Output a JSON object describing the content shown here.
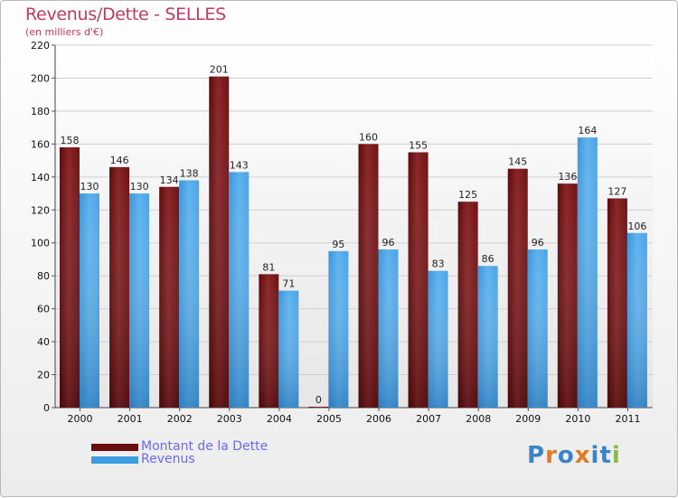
{
  "title": "Revenus/Dette - SELLES",
  "subtitle": "(en milliers d'€)",
  "legend": [
    {
      "label": "Montant de la Dette",
      "color": "#6b0e10"
    },
    {
      "label": "Revenus",
      "color": "#3d9be0"
    }
  ],
  "logo": {
    "letters": [
      "P",
      "r",
      "o",
      "x",
      "i",
      "t",
      "i"
    ],
    "colors": [
      "#3b83c6",
      "#e07b1f",
      "#3b83c6",
      "#e07b1f",
      "#3b83c6",
      "#3b83c6",
      "#8cba3c"
    ]
  },
  "chart_data": {
    "type": "bar",
    "categories": [
      "2000",
      "2001",
      "2002",
      "2003",
      "2004",
      "2005",
      "2006",
      "2007",
      "2008",
      "2009",
      "2010",
      "2011"
    ],
    "series": [
      {
        "name": "Montant de la Dette",
        "color": "#7a1719",
        "values": [
          158,
          146,
          134,
          201,
          81,
          0,
          160,
          155,
          125,
          145,
          136,
          127
        ]
      },
      {
        "name": "Revenus",
        "color": "#4aa3e6",
        "values": [
          130,
          130,
          138,
          143,
          71,
          95,
          96,
          83,
          86,
          96,
          164,
          106
        ]
      }
    ],
    "yticks": [
      0,
      20,
      40,
      60,
      80,
      100,
      120,
      140,
      160,
      180,
      200,
      220
    ],
    "ylim": [
      0,
      220
    ],
    "grid": true,
    "title": "Revenus/Dette - SELLES",
    "xlabel": "",
    "ylabel": "(en milliers d'€)"
  }
}
